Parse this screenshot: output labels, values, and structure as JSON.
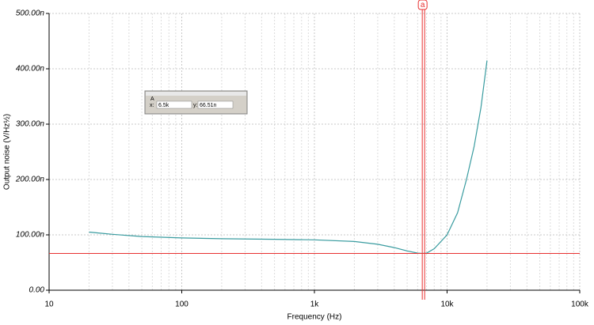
{
  "chart_data": {
    "type": "line",
    "x_label": "Frequency (Hz)",
    "y_label": "Output noise (V/Hz½)",
    "x_scale": "log",
    "grid": true,
    "xlim": [
      10,
      100000
    ],
    "xticks": [
      10,
      100,
      {
        "value": 1000,
        "label": "1k"
      },
      {
        "value": 10000,
        "label": "10k"
      },
      {
        "value": 100000,
        "label": "100k"
      }
    ],
    "ylim": [
      0,
      500
    ],
    "yticks": [
      {
        "value": 0,
        "label": "0.00"
      },
      {
        "value": 100,
        "label": "100.00n"
      },
      {
        "value": 200,
        "label": "200.00n"
      },
      {
        "value": 300,
        "label": "300.00n"
      },
      {
        "value": 400,
        "label": "400.00n"
      },
      {
        "value": 500,
        "label": "500.00n"
      }
    ],
    "series": [
      {
        "color": "#3a9ca0",
        "x": [
          20,
          30,
          50,
          100,
          200,
          500,
          1000,
          2000,
          3000,
          4000,
          5000,
          6000,
          6500,
          7000,
          8000,
          10000,
          12000,
          14000,
          16000,
          18000,
          20000
        ],
        "values": [
          105,
          101,
          97,
          94.5,
          93,
          92,
          91,
          88,
          83,
          77,
          71,
          67,
          66.5,
          67,
          75,
          100,
          140,
          200,
          260,
          330,
          415
        ]
      }
    ],
    "cursor": {
      "name": "a",
      "box_title": "A",
      "color": "#e83030",
      "x_caption": "x:",
      "y_caption": "y:",
      "x": {
        "value": 6500,
        "label": "6.5k"
      },
      "y": {
        "value": 66.51,
        "label": "66.51n"
      }
    }
  }
}
